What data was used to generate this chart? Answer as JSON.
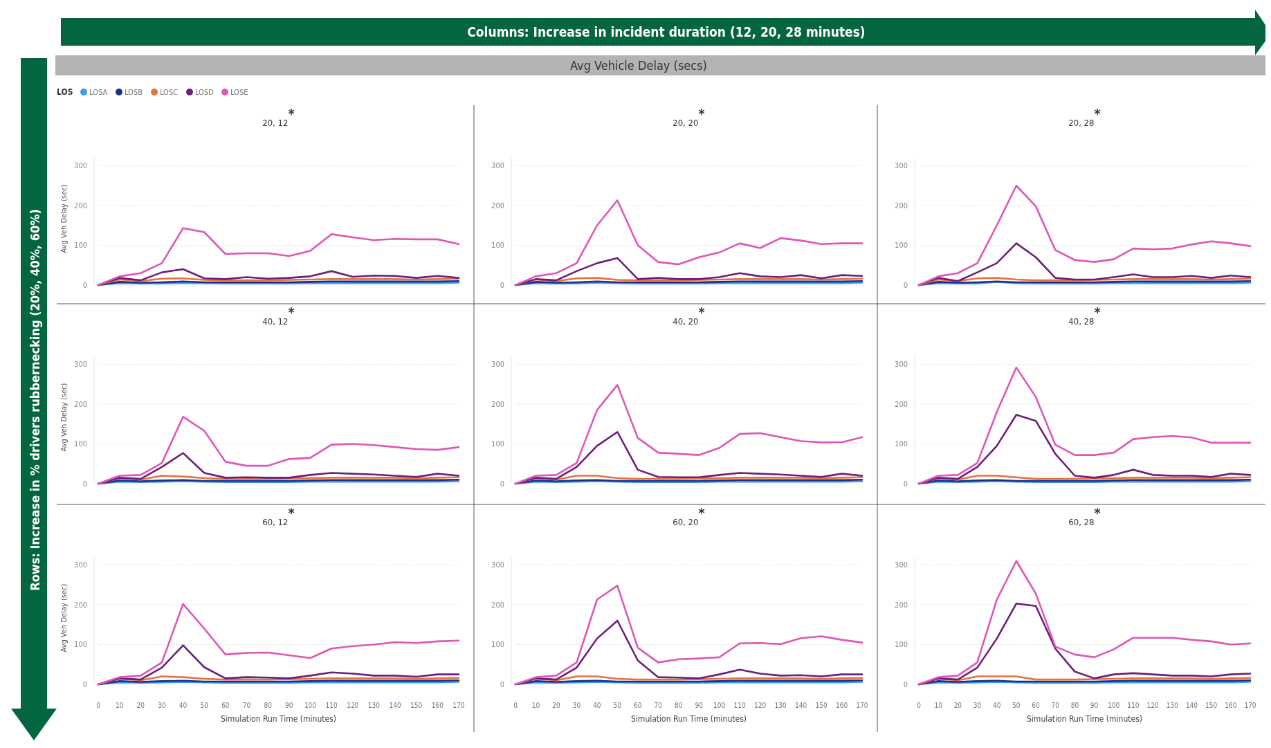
{
  "chart_data": [
    {
      "type": "line",
      "title": "20, 12$^{*}$",
      "ylabel": "Avg Veh Delay (sec)",
      "legend_title": "LOS",
      "legend": "top left",
      "grid": "y",
      "tick_labels": "y",
      "line_style": "solid",
      "xlim": [
        0,
        170
      ],
      "ylim": [
        0,
        320
      ],
      "yticks": [
        0,
        100,
        200,
        300
      ],
      "annotations": [
        "Columns: Increase in incident duration (12, 20, 28 minutes)",
        "Avg Vehicle Delay (secs)",
        "Rows: Increase in % drivers rubbernecking (20%, 40%, 60%)"
      ],
      "x": [
        0,
        10,
        20,
        30,
        40,
        50,
        60,
        70,
        80,
        90,
        100,
        110,
        120,
        130,
        140,
        150,
        160,
        170
      ],
      "series": [
        {
          "name": "LOSA",
          "color": "#3a9be8",
          "values": [
            0,
            5,
            4,
            4,
            5,
            5,
            4,
            4,
            4,
            4,
            5,
            5,
            5,
            5,
            5,
            5,
            5,
            6
          ]
        },
        {
          "name": "LOSB",
          "color": "#1f2e8c",
          "values": [
            0,
            8,
            6,
            7,
            9,
            7,
            7,
            7,
            7,
            7,
            8,
            9,
            9,
            9,
            9,
            9,
            9,
            10
          ]
        },
        {
          "name": "LOSC",
          "color": "#e8733a",
          "values": [
            0,
            14,
            10,
            16,
            17,
            13,
            12,
            12,
            12,
            13,
            14,
            15,
            15,
            15,
            15,
            14,
            15,
            16
          ]
        },
        {
          "name": "LOSD",
          "color": "#6b1e7a",
          "values": [
            0,
            18,
            12,
            32,
            40,
            17,
            15,
            20,
            16,
            18,
            22,
            35,
            21,
            24,
            23,
            18,
            23,
            18
          ]
        },
        {
          "name": "LOSE",
          "color": "#e055b5",
          "values": [
            0,
            22,
            30,
            55,
            143,
            133,
            78,
            80,
            80,
            73,
            86,
            128,
            120,
            113,
            116,
            115,
            115,
            103
          ]
        }
      ]
    },
    {
      "type": "line",
      "title": "20, 20$^{*}$",
      "grid": "y",
      "tick_labels": "y",
      "line_style": "solid",
      "xlim": [
        0,
        170
      ],
      "ylim": [
        0,
        320
      ],
      "yticks": [
        0,
        100,
        200,
        300
      ],
      "x": [
        0,
        10,
        20,
        30,
        40,
        50,
        60,
        70,
        80,
        90,
        100,
        110,
        120,
        130,
        140,
        150,
        160,
        170
      ],
      "series": [
        {
          "color": "#3a9be8",
          "values": [
            0,
            5,
            4,
            4,
            6,
            5,
            4,
            4,
            4,
            4,
            5,
            5,
            5,
            5,
            5,
            5,
            5,
            6
          ]
        },
        {
          "color": "#1f2e8c",
          "values": [
            0,
            8,
            6,
            7,
            9,
            7,
            7,
            7,
            7,
            7,
            8,
            9,
            9,
            9,
            9,
            9,
            9,
            10
          ]
        },
        {
          "color": "#e8733a",
          "values": [
            0,
            14,
            10,
            17,
            18,
            13,
            12,
            12,
            12,
            13,
            14,
            15,
            15,
            15,
            15,
            14,
            15,
            16
          ]
        },
        {
          "color": "#6b1e7a",
          "values": [
            0,
            15,
            12,
            35,
            55,
            68,
            15,
            18,
            15,
            15,
            20,
            30,
            22,
            20,
            25,
            17,
            25,
            23
          ]
        },
        {
          "color": "#e055b5",
          "values": [
            0,
            22,
            30,
            55,
            150,
            213,
            100,
            58,
            52,
            70,
            82,
            105,
            93,
            118,
            112,
            103,
            105,
            105
          ]
        }
      ]
    },
    {
      "type": "line",
      "title": "20, 28$^{*}$",
      "grid": "y",
      "tick_labels": "y",
      "line_style": "solid",
      "xlim": [
        0,
        170
      ],
      "ylim": [
        0,
        320
      ],
      "yticks": [
        0,
        100,
        200,
        300
      ],
      "x": [
        0,
        10,
        20,
        30,
        40,
        50,
        60,
        70,
        80,
        90,
        100,
        110,
        120,
        130,
        140,
        150,
        160,
        170
      ],
      "series": [
        {
          "color": "#3a9be8",
          "values": [
            0,
            5,
            4,
            4,
            8,
            5,
            4,
            4,
            4,
            4,
            5,
            5,
            5,
            5,
            5,
            5,
            5,
            6
          ]
        },
        {
          "color": "#1f2e8c",
          "values": [
            0,
            8,
            6,
            7,
            9,
            7,
            7,
            7,
            7,
            7,
            8,
            9,
            9,
            9,
            9,
            9,
            9,
            10
          ]
        },
        {
          "color": "#e8733a",
          "values": [
            0,
            14,
            10,
            17,
            18,
            14,
            12,
            12,
            12,
            13,
            14,
            15,
            15,
            15,
            15,
            14,
            15,
            16
          ]
        },
        {
          "color": "#6b1e7a",
          "values": [
            0,
            18,
            10,
            32,
            55,
            105,
            70,
            18,
            14,
            14,
            20,
            27,
            20,
            20,
            23,
            18,
            24,
            20
          ]
        },
        {
          "color": "#e055b5",
          "values": [
            0,
            22,
            30,
            55,
            150,
            250,
            198,
            88,
            63,
            58,
            65,
            92,
            90,
            92,
            102,
            110,
            105,
            98
          ]
        }
      ]
    },
    {
      "type": "line",
      "title": "40, 12$^{*}$",
      "ylabel": "Avg Veh Delay (sec)",
      "grid": "y",
      "tick_labels": "y",
      "line_style": "solid",
      "xlim": [
        0,
        170
      ],
      "ylim": [
        0,
        320
      ],
      "yticks": [
        0,
        100,
        200,
        300
      ],
      "x": [
        0,
        10,
        20,
        30,
        40,
        50,
        60,
        70,
        80,
        90,
        100,
        110,
        120,
        130,
        140,
        150,
        160,
        170
      ],
      "series": [
        {
          "color": "#3a9be8",
          "values": [
            0,
            5,
            4,
            5,
            6,
            5,
            4,
            4,
            4,
            4,
            5,
            5,
            5,
            5,
            5,
            5,
            5,
            6
          ]
        },
        {
          "color": "#1f2e8c",
          "values": [
            0,
            8,
            6,
            8,
            9,
            7,
            7,
            7,
            7,
            7,
            8,
            9,
            9,
            9,
            9,
            9,
            9,
            10
          ]
        },
        {
          "color": "#e8733a",
          "values": [
            0,
            14,
            10,
            20,
            18,
            14,
            12,
            12,
            12,
            13,
            14,
            15,
            15,
            15,
            15,
            14,
            15,
            16
          ]
        },
        {
          "color": "#6b1e7a",
          "values": [
            0,
            15,
            12,
            42,
            77,
            27,
            15,
            16,
            15,
            15,
            22,
            27,
            25,
            23,
            20,
            17,
            25,
            20
          ]
        },
        {
          "color": "#e055b5",
          "values": [
            0,
            20,
            22,
            52,
            168,
            133,
            55,
            45,
            45,
            62,
            65,
            98,
            100,
            97,
            92,
            87,
            85,
            92
          ]
        }
      ]
    },
    {
      "type": "line",
      "title": "40, 20$^{*}$",
      "grid": "y",
      "tick_labels": "y",
      "line_style": "solid",
      "xlim": [
        0,
        170
      ],
      "ylim": [
        0,
        320
      ],
      "yticks": [
        0,
        100,
        200,
        300
      ],
      "x": [
        0,
        10,
        20,
        30,
        40,
        50,
        60,
        70,
        80,
        90,
        100,
        110,
        120,
        130,
        140,
        150,
        160,
        170
      ],
      "series": [
        {
          "color": "#3a9be8",
          "values": [
            0,
            5,
            4,
            5,
            6,
            5,
            4,
            4,
            4,
            4,
            5,
            5,
            5,
            5,
            5,
            5,
            5,
            6
          ]
        },
        {
          "color": "#1f2e8c",
          "values": [
            0,
            8,
            6,
            8,
            9,
            7,
            7,
            7,
            7,
            7,
            8,
            9,
            9,
            9,
            9,
            9,
            9,
            10
          ]
        },
        {
          "color": "#e8733a",
          "values": [
            0,
            14,
            10,
            20,
            20,
            14,
            12,
            12,
            12,
            13,
            14,
            15,
            15,
            15,
            15,
            14,
            15,
            16
          ]
        },
        {
          "color": "#6b1e7a",
          "values": [
            0,
            15,
            12,
            42,
            95,
            130,
            35,
            17,
            16,
            16,
            22,
            27,
            25,
            23,
            20,
            17,
            25,
            20
          ]
        },
        {
          "color": "#e055b5",
          "values": [
            0,
            20,
            22,
            52,
            185,
            248,
            115,
            78,
            75,
            72,
            90,
            125,
            127,
            117,
            107,
            104,
            104,
            117
          ]
        }
      ]
    },
    {
      "type": "line",
      "title": "40, 28$^{*}$",
      "grid": "y",
      "tick_labels": "y",
      "line_style": "solid",
      "xlim": [
        0,
        170
      ],
      "ylim": [
        0,
        320
      ],
      "yticks": [
        0,
        100,
        200,
        300
      ],
      "x": [
        0,
        10,
        20,
        30,
        40,
        50,
        60,
        70,
        80,
        90,
        100,
        110,
        120,
        130,
        140,
        150,
        160,
        170
      ],
      "series": [
        {
          "color": "#3a9be8",
          "values": [
            0,
            5,
            4,
            5,
            6,
            5,
            4,
            4,
            4,
            4,
            5,
            5,
            5,
            5,
            5,
            5,
            5,
            6
          ]
        },
        {
          "color": "#1f2e8c",
          "values": [
            0,
            8,
            6,
            8,
            9,
            7,
            7,
            7,
            7,
            7,
            8,
            9,
            9,
            9,
            9,
            9,
            9,
            10
          ]
        },
        {
          "color": "#e8733a",
          "values": [
            0,
            14,
            10,
            20,
            20,
            16,
            12,
            12,
            12,
            13,
            14,
            15,
            15,
            15,
            15,
            14,
            15,
            16
          ]
        },
        {
          "color": "#6b1e7a",
          "values": [
            0,
            15,
            12,
            42,
            95,
            173,
            158,
            75,
            20,
            15,
            22,
            35,
            22,
            20,
            20,
            17,
            25,
            22
          ]
        },
        {
          "color": "#e055b5",
          "values": [
            0,
            20,
            22,
            52,
            180,
            292,
            218,
            98,
            72,
            72,
            78,
            112,
            117,
            120,
            116,
            103,
            103,
            103
          ]
        }
      ]
    },
    {
      "type": "line",
      "title": "60, 12$^{*}$",
      "ylabel": "Avg Veh Delay (sec)",
      "xlabel": "Simulation Run Time (minutes)",
      "grid": "y",
      "line_style": "solid",
      "xlim": [
        0,
        170
      ],
      "ylim": [
        0,
        320
      ],
      "yticks": [
        0,
        100,
        200,
        300
      ],
      "xticks": [
        0,
        10,
        20,
        30,
        40,
        50,
        60,
        70,
        80,
        90,
        100,
        110,
        120,
        130,
        140,
        150,
        160,
        170
      ],
      "x": [
        0,
        10,
        20,
        30,
        40,
        50,
        60,
        70,
        80,
        90,
        100,
        110,
        120,
        130,
        140,
        150,
        160,
        170
      ],
      "series": [
        {
          "color": "#3a9be8",
          "values": [
            0,
            5,
            4,
            5,
            6,
            5,
            4,
            4,
            4,
            4,
            5,
            5,
            5,
            5,
            5,
            5,
            5,
            6
          ]
        },
        {
          "color": "#1f2e8c",
          "values": [
            0,
            8,
            6,
            8,
            9,
            7,
            7,
            7,
            7,
            7,
            8,
            9,
            9,
            9,
            9,
            9,
            9,
            10
          ]
        },
        {
          "color": "#e8733a",
          "values": [
            0,
            14,
            10,
            20,
            18,
            14,
            12,
            12,
            12,
            13,
            14,
            15,
            15,
            15,
            15,
            14,
            15,
            16
          ]
        },
        {
          "color": "#6b1e7a",
          "values": [
            0,
            15,
            12,
            42,
            98,
            43,
            15,
            18,
            17,
            15,
            22,
            30,
            27,
            22,
            22,
            19,
            25,
            25
          ]
        },
        {
          "color": "#e055b5",
          "values": [
            0,
            18,
            22,
            55,
            202,
            140,
            75,
            79,
            80,
            73,
            66,
            90,
            96,
            100,
            106,
            104,
            108,
            110
          ]
        }
      ]
    },
    {
      "type": "line",
      "title": "60, 20$^{*}$",
      "xlabel": "Simulation Run Time (minutes)",
      "grid": "y",
      "line_style": "solid",
      "xlim": [
        0,
        170
      ],
      "ylim": [
        0,
        320
      ],
      "yticks": [
        0,
        100,
        200,
        300
      ],
      "xticks": [
        0,
        10,
        20,
        30,
        40,
        50,
        60,
        70,
        80,
        90,
        100,
        110,
        120,
        130,
        140,
        150,
        160,
        170
      ],
      "x": [
        0,
        10,
        20,
        30,
        40,
        50,
        60,
        70,
        80,
        90,
        100,
        110,
        120,
        130,
        140,
        150,
        160,
        170
      ],
      "series": [
        {
          "color": "#3a9be8",
          "values": [
            0,
            5,
            4,
            5,
            6,
            5,
            4,
            4,
            4,
            4,
            5,
            5,
            5,
            5,
            5,
            5,
            5,
            6
          ]
        },
        {
          "color": "#1f2e8c",
          "values": [
            0,
            8,
            6,
            8,
            9,
            7,
            7,
            7,
            7,
            7,
            8,
            9,
            9,
            9,
            9,
            9,
            9,
            10
          ]
        },
        {
          "color": "#e8733a",
          "values": [
            0,
            14,
            10,
            20,
            20,
            14,
            12,
            12,
            12,
            13,
            14,
            15,
            15,
            15,
            15,
            14,
            15,
            16
          ]
        },
        {
          "color": "#6b1e7a",
          "values": [
            0,
            15,
            12,
            42,
            115,
            160,
            60,
            18,
            17,
            15,
            25,
            37,
            27,
            22,
            23,
            20,
            25,
            25
          ]
        },
        {
          "color": "#e055b5",
          "values": [
            0,
            18,
            22,
            55,
            213,
            248,
            92,
            55,
            63,
            65,
            68,
            103,
            104,
            101,
            116,
            121,
            112,
            105
          ]
        }
      ]
    },
    {
      "type": "line",
      "title": "60, 28$^{*}$",
      "xlabel": "Simulation Run Time (minutes)",
      "grid": "y",
      "line_style": "solid",
      "xlim": [
        0,
        170
      ],
      "ylim": [
        0,
        320
      ],
      "yticks": [
        0,
        100,
        200,
        300
      ],
      "xticks": [
        0,
        10,
        20,
        30,
        40,
        50,
        60,
        70,
        80,
        90,
        100,
        110,
        120,
        130,
        140,
        150,
        160,
        170
      ],
      "x": [
        0,
        10,
        20,
        30,
        40,
        50,
        60,
        70,
        80,
        90,
        100,
        110,
        120,
        130,
        140,
        150,
        160,
        170
      ],
      "series": [
        {
          "color": "#3a9be8",
          "values": [
            0,
            5,
            4,
            5,
            6,
            5,
            4,
            4,
            4,
            4,
            5,
            5,
            5,
            5,
            5,
            5,
            5,
            6
          ]
        },
        {
          "color": "#1f2e8c",
          "values": [
            0,
            8,
            6,
            8,
            9,
            7,
            7,
            7,
            7,
            7,
            8,
            9,
            9,
            9,
            9,
            9,
            9,
            10
          ]
        },
        {
          "color": "#e8733a",
          "values": [
            0,
            14,
            10,
            20,
            20,
            20,
            12,
            12,
            12,
            13,
            14,
            15,
            15,
            15,
            15,
            14,
            15,
            16
          ]
        },
        {
          "color": "#6b1e7a",
          "values": [
            0,
            15,
            12,
            42,
            115,
            203,
            197,
            90,
            32,
            15,
            25,
            28,
            25,
            22,
            22,
            20,
            25,
            27
          ]
        },
        {
          "color": "#e055b5",
          "values": [
            0,
            18,
            22,
            55,
            213,
            310,
            228,
            95,
            75,
            68,
            88,
            117,
            117,
            117,
            112,
            108,
            100,
            103
          ]
        }
      ]
    }
  ]
}
